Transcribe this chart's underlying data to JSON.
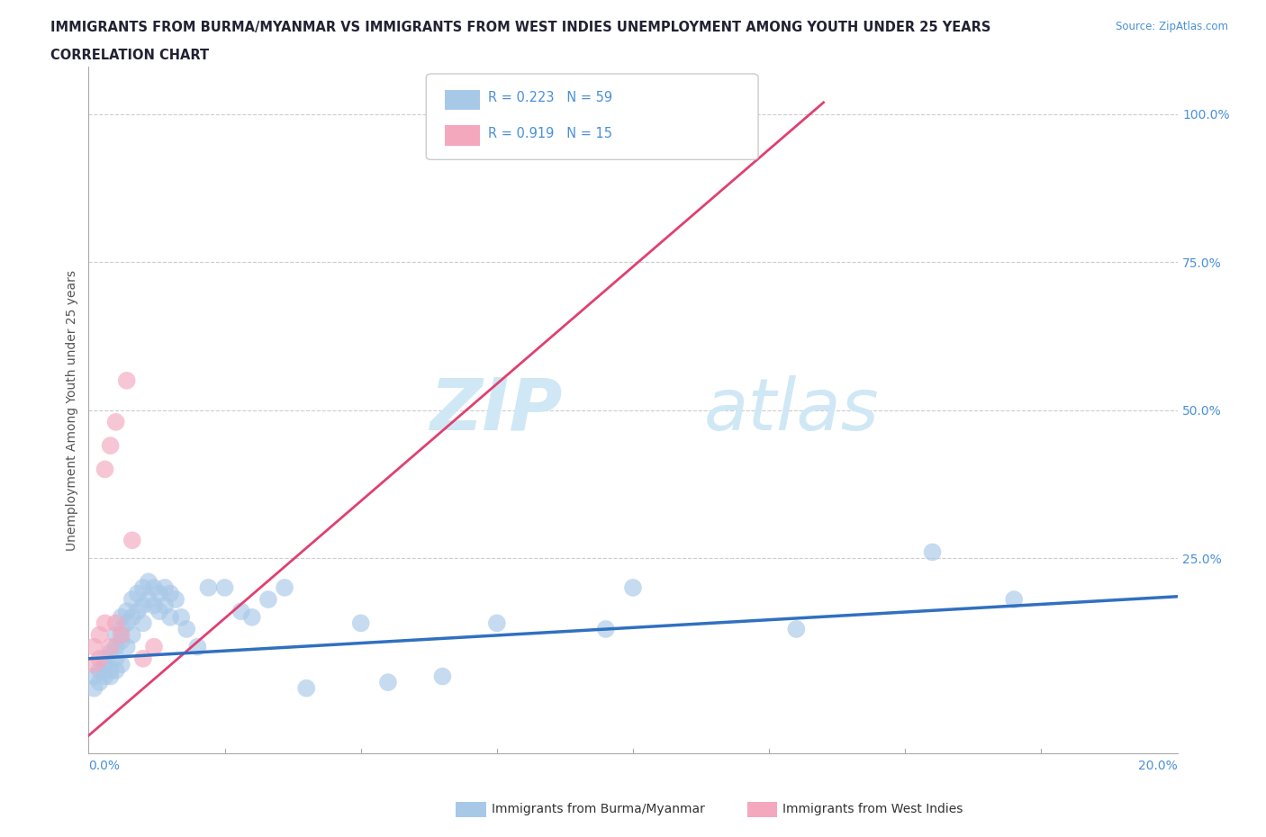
{
  "title_line1": "IMMIGRANTS FROM BURMA/MYANMAR VS IMMIGRANTS FROM WEST INDIES UNEMPLOYMENT AMONG YOUTH UNDER 25 YEARS",
  "title_line2": "CORRELATION CHART",
  "source": "Source: ZipAtlas.com",
  "ylabel": "Unemployment Among Youth under 25 years",
  "ytick_labels": [
    "100.0%",
    "75.0%",
    "50.0%",
    "25.0%"
  ],
  "ytick_values": [
    1.0,
    0.75,
    0.5,
    0.25
  ],
  "xmin": 0.0,
  "xmax": 0.2,
  "ymin": -0.08,
  "ymax": 1.08,
  "color_burma": "#a8c8e8",
  "color_westindies": "#f4a8be",
  "color_burma_line": "#3070c0",
  "color_westindies_line": "#e04070",
  "color_title": "#222233",
  "color_source": "#4a90d9",
  "color_yticks": "#4a90d9",
  "color_xticks": "#4a90d9",
  "color_ylabel": "#555555",
  "color_grid": "#cccccc",
  "watermark_color": "#d0e8f5",
  "burma_x": [
    0.001,
    0.001,
    0.002,
    0.002,
    0.003,
    0.003,
    0.003,
    0.004,
    0.004,
    0.004,
    0.005,
    0.005,
    0.005,
    0.005,
    0.006,
    0.006,
    0.006,
    0.006,
    0.007,
    0.007,
    0.007,
    0.008,
    0.008,
    0.008,
    0.009,
    0.009,
    0.01,
    0.01,
    0.01,
    0.011,
    0.011,
    0.012,
    0.012,
    0.013,
    0.013,
    0.014,
    0.014,
    0.015,
    0.015,
    0.016,
    0.017,
    0.018,
    0.02,
    0.022,
    0.025,
    0.028,
    0.03,
    0.033,
    0.036,
    0.04,
    0.05,
    0.055,
    0.065,
    0.075,
    0.095,
    0.1,
    0.13,
    0.155,
    0.17
  ],
  "burma_y": [
    0.05,
    0.03,
    0.06,
    0.04,
    0.08,
    0.05,
    0.07,
    0.09,
    0.06,
    0.05,
    0.1,
    0.12,
    0.08,
    0.06,
    0.13,
    0.15,
    0.11,
    0.07,
    0.16,
    0.14,
    0.1,
    0.18,
    0.15,
    0.12,
    0.19,
    0.16,
    0.2,
    0.17,
    0.14,
    0.21,
    0.18,
    0.2,
    0.17,
    0.19,
    0.16,
    0.2,
    0.17,
    0.19,
    0.15,
    0.18,
    0.15,
    0.13,
    0.1,
    0.2,
    0.2,
    0.16,
    0.15,
    0.18,
    0.2,
    0.03,
    0.14,
    0.04,
    0.05,
    0.14,
    0.13,
    0.2,
    0.13,
    0.26,
    0.18
  ],
  "westindies_x": [
    0.001,
    0.001,
    0.002,
    0.002,
    0.003,
    0.003,
    0.004,
    0.004,
    0.005,
    0.005,
    0.006,
    0.007,
    0.008,
    0.01,
    0.012
  ],
  "westindies_y": [
    0.07,
    0.1,
    0.08,
    0.12,
    0.4,
    0.14,
    0.44,
    0.1,
    0.48,
    0.14,
    0.12,
    0.55,
    0.28,
    0.08,
    0.1
  ],
  "wi_line_x0": 0.0,
  "wi_line_y0": -0.05,
  "wi_line_x1": 0.135,
  "wi_line_y1": 1.02,
  "burma_line_x0": 0.0,
  "burma_line_y0": 0.08,
  "burma_line_x1": 0.2,
  "burma_line_y1": 0.185
}
